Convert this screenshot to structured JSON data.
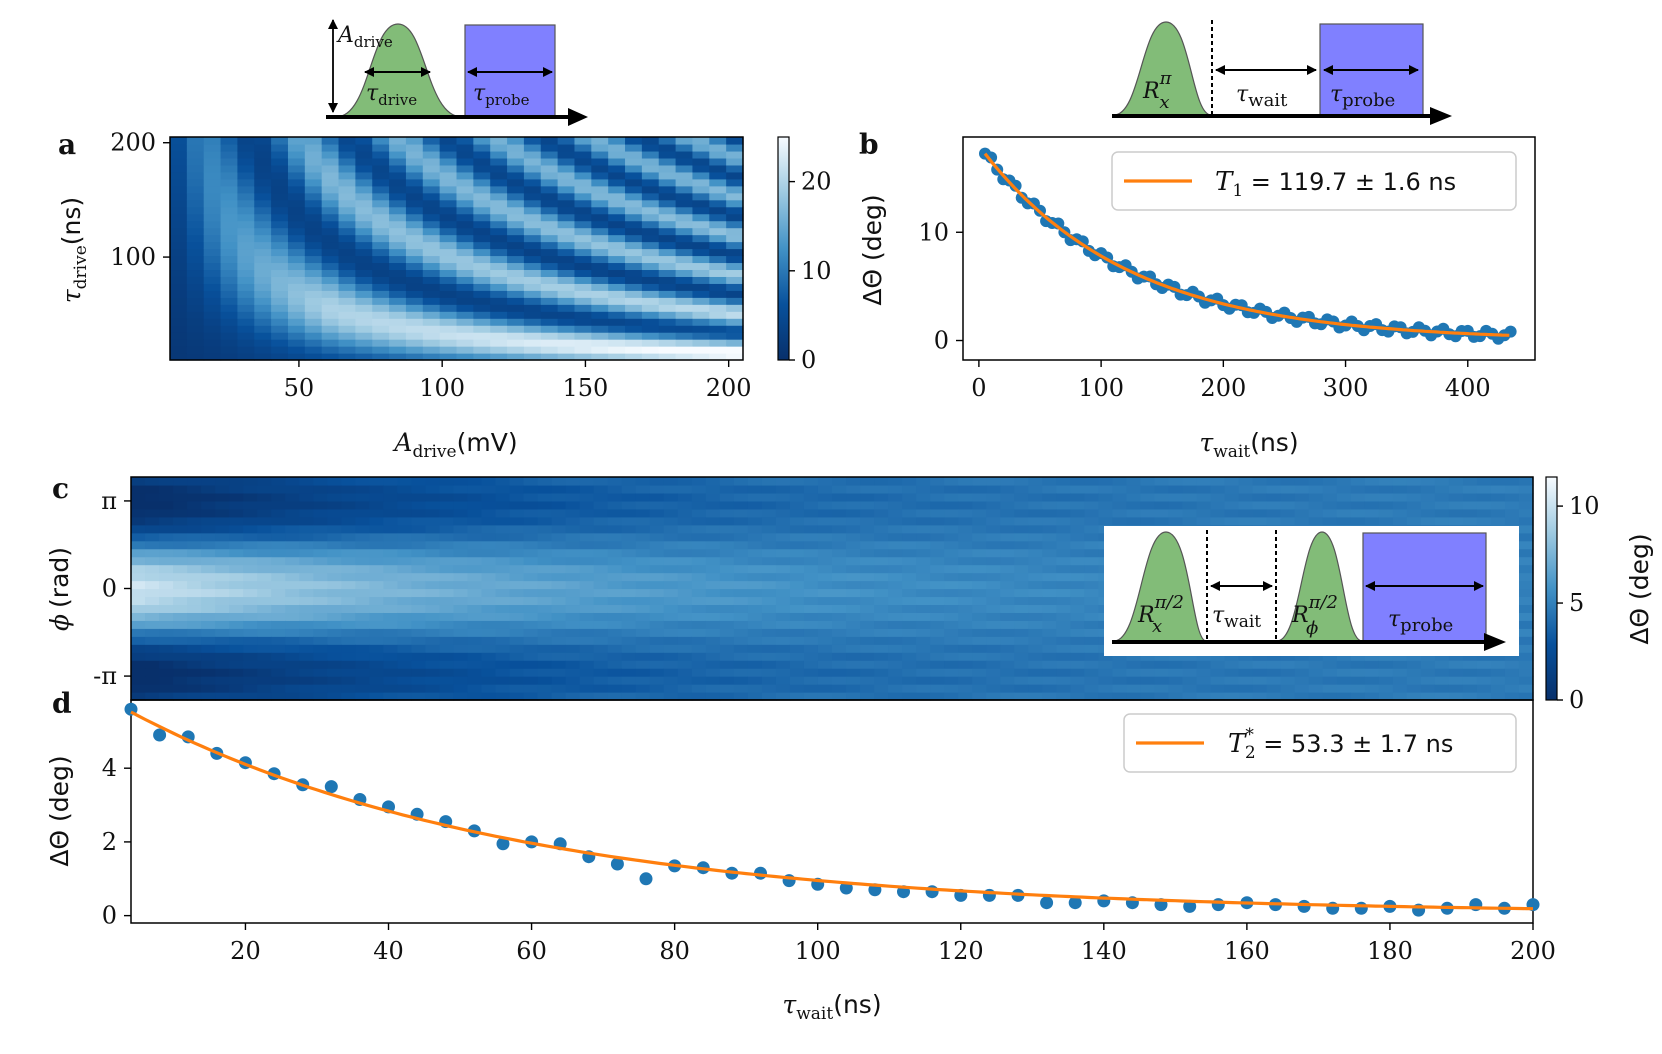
{
  "panels": {
    "a": "a",
    "b": "b",
    "c": "c",
    "d": "d"
  },
  "colors": {
    "data": "#1f77b4",
    "fit": "#ff7f0e",
    "pulse_green": "#82bc78",
    "probe_blue": "#8080ff"
  },
  "sequences": {
    "top_left": {
      "amp": "A",
      "amp_sub": "drive",
      "tau": "τ",
      "tau_sub": "drive",
      "probe": "τ",
      "probe_sub": "probe"
    },
    "top_right": {
      "pulse": "R",
      "pulse_sub": "x",
      "pulse_sup": "π",
      "wait": "τ",
      "wait_sub": "wait",
      "probe": "τ",
      "probe_sub": "probe"
    },
    "inset_c": {
      "pulse1": "R",
      "pulse1_sub": "x",
      "pulse1_sup": "π/2",
      "wait": "τ",
      "wait_sub": "wait",
      "pulse2": "R",
      "pulse2_sub": "ϕ",
      "pulse2_sup": "π/2",
      "probe": "τ",
      "probe_sub": "probe"
    }
  },
  "chart_data": [
    {
      "panel": "a",
      "type": "heatmap",
      "xlabel": "A_drive (mV)",
      "xlabel_main": "A",
      "xlabel_sub": "drive",
      "xlabel_unit": "(mV)",
      "ylabel_main": "τ",
      "ylabel_sub": "drive",
      "ylabel_unit": "(ns)",
      "xlim": [
        5,
        205
      ],
      "ylim": [
        10,
        205
      ],
      "xticks": [
        50,
        100,
        150,
        200
      ],
      "yticks": [
        100,
        200
      ],
      "xtick_labels": [
        "50",
        "100",
        "150",
        "200"
      ],
      "ytick_labels": [
        "100",
        "200"
      ],
      "colorbar": {
        "range": [
          0,
          25
        ],
        "ticks": [
          0,
          10,
          20
        ],
        "tick_labels": [
          "0",
          "10",
          "20"
        ]
      },
      "cols": 34,
      "rows": 32
    },
    {
      "panel": "b",
      "type": "scatter",
      "xlabel_main": "τ",
      "xlabel_sub": "wait",
      "xlabel_unit": "(ns)",
      "ylabel": "ΔΘ (deg)",
      "xlim": [
        -13,
        455
      ],
      "ylim": [
        -1.8,
        18.8
      ],
      "xticks": [
        0,
        100,
        200,
        300,
        400
      ],
      "xtick_labels": [
        "0",
        "100",
        "200",
        "300",
        "400"
      ],
      "yticks": [
        0,
        10
      ],
      "ytick_labels": [
        "0",
        "10"
      ],
      "series": [
        {
          "kind": "points",
          "x_start": 5,
          "x_step": 5,
          "x_end": 435,
          "amplitude": 18.0,
          "T": 119.7
        }
      ],
      "fit": {
        "amplitude": 18.0,
        "T": 119.7,
        "x_range": [
          5,
          435
        ]
      },
      "legend": {
        "symbol": "T",
        "sub": "1",
        "text": " = 119.7 ± 1.6 ns",
        "position": "top-right"
      }
    },
    {
      "panel": "c",
      "type": "heatmap",
      "ylabel_main": "ϕ",
      "ylabel_unit": "(rad)",
      "xlim": [
        4,
        200
      ],
      "ylim": [
        -4.0,
        4.0
      ],
      "yticks": [
        3.14159,
        0,
        -3.14159
      ],
      "ytick_labels": [
        "π",
        "0",
        "-π"
      ],
      "colorbar": {
        "range": [
          0,
          11.5
        ],
        "ticks": [
          0,
          5,
          10
        ],
        "tick_labels": [
          "0",
          "5",
          "10"
        ],
        "label": "ΔΘ (deg)"
      },
      "cols": 100,
      "rows": 28
    },
    {
      "panel": "d",
      "type": "scatter",
      "xlabel_main": "τ",
      "xlabel_sub": "wait",
      "xlabel_unit": "(ns)",
      "ylabel": "ΔΘ (deg)",
      "xlim": [
        4,
        200
      ],
      "ylim": [
        -0.2,
        5.85
      ],
      "xticks": [
        20,
        40,
        60,
        80,
        100,
        120,
        140,
        160,
        180,
        200
      ],
      "xtick_labels": [
        "20",
        "40",
        "60",
        "80",
        "100",
        "120",
        "140",
        "160",
        "180",
        "200"
      ],
      "yticks": [
        0,
        2,
        4
      ],
      "ytick_labels": [
        "0",
        "2",
        "4"
      ],
      "x": [
        4,
        8,
        12,
        16,
        20,
        24,
        28,
        32,
        36,
        40,
        44,
        48,
        52,
        56,
        60,
        64,
        68,
        72,
        76,
        80,
        84,
        88,
        92,
        96,
        100,
        104,
        108,
        112,
        116,
        120,
        124,
        128,
        132,
        136,
        140,
        144,
        148,
        152,
        156,
        160,
        164,
        168,
        172,
        176,
        180,
        184,
        188,
        192,
        196,
        200
      ],
      "y": [
        5.6,
        4.9,
        4.85,
        4.4,
        4.15,
        3.85,
        3.55,
        3.5,
        3.15,
        2.95,
        2.75,
        2.55,
        2.3,
        1.95,
        2.0,
        1.95,
        1.6,
        1.4,
        1.0,
        1.35,
        1.3,
        1.15,
        1.15,
        0.95,
        0.85,
        0.75,
        0.7,
        0.65,
        0.65,
        0.55,
        0.55,
        0.55,
        0.35,
        0.35,
        0.4,
        0.35,
        0.3,
        0.25,
        0.3,
        0.35,
        0.3,
        0.25,
        0.2,
        0.2,
        0.25,
        0.15,
        0.2,
        0.3,
        0.2,
        0.3
      ],
      "fit": {
        "amplitude": 5.9,
        "T": 53.3,
        "offset": 0.05,
        "x_range": [
          4,
          200
        ]
      },
      "legend": {
        "symbol": "T",
        "sub": "2",
        "sup": "*",
        "text": " = 53.3 ± 1.7 ns",
        "position": "top-right"
      }
    }
  ]
}
